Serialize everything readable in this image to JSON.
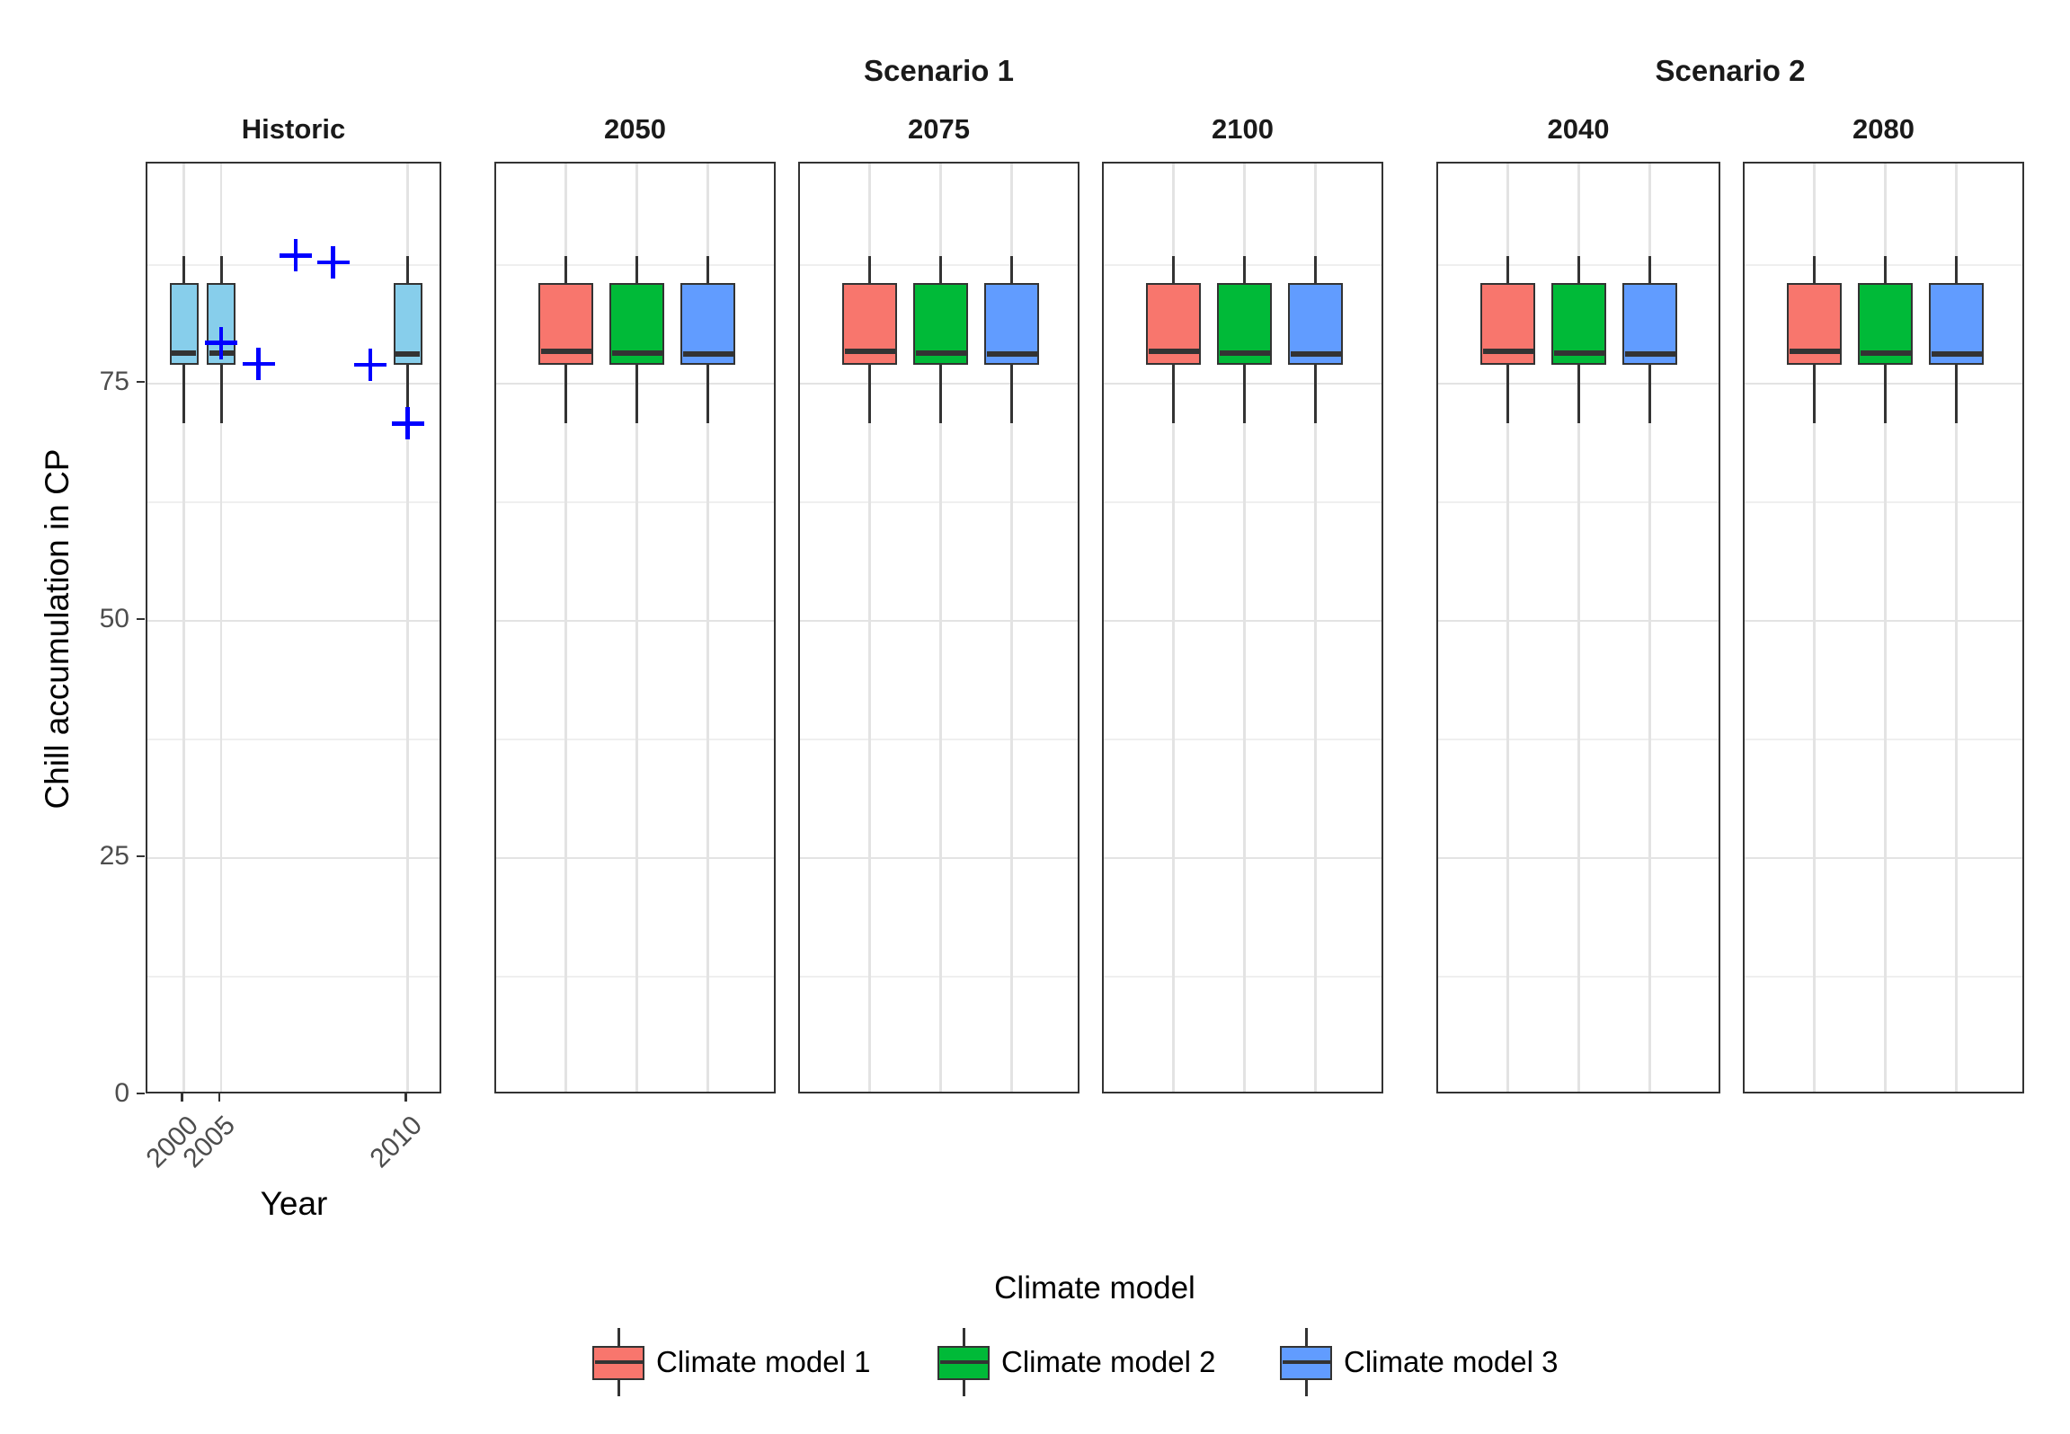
{
  "chart_data": {
    "type": "boxplot",
    "title": "",
    "ylabel": "Chill accumulation in CP",
    "xlabel": "Year",
    "ylim": [
      0,
      98.2
    ],
    "y_ticks": [
      0,
      25,
      50,
      75
    ],
    "y_minor_gridlines": [
      12.5,
      37.5,
      62.5,
      87.5
    ],
    "grid": "on",
    "colors": {
      "historic_fill": "#87CEEB",
      "model1": "#F8766D",
      "model2": "#00BA38",
      "model3": "#619CFF",
      "observed_point": "#0000FF",
      "box_stroke": "#333333",
      "tick_text": "#4d4d4d"
    },
    "legend": {
      "title": "Climate model",
      "position": "bottom",
      "entries": [
        {
          "label": "Climate model 1",
          "color": "#F8766D"
        },
        {
          "label": "Climate model 2",
          "color": "#00BA38"
        },
        {
          "label": "Climate model 3",
          "color": "#619CFF"
        }
      ]
    },
    "facet_groups": [
      {
        "label": "Scenario 1",
        "facet_indexes": [
          1,
          2,
          3
        ]
      },
      {
        "label": "Scenario 2",
        "facet_indexes": [
          4,
          5
        ]
      }
    ],
    "facets": [
      {
        "label": "Historic",
        "x_levels": [
          "2000",
          "2005",
          "2006",
          "2007",
          "2008",
          "2009",
          "2010"
        ],
        "x_ticks": [
          "2000",
          "2005",
          "2010"
        ],
        "boxplots": [
          {
            "x": "2000",
            "fill": "#87CEEB",
            "whisker_low": 70.8,
            "q1": 77.0,
            "median": 78.2,
            "q3": 85.6,
            "whisker_high": 88.4
          },
          {
            "x": "2005",
            "fill": "#87CEEB",
            "whisker_low": 70.8,
            "q1": 77.0,
            "median": 78.2,
            "q3": 85.6,
            "whisker_high": 88.4
          },
          {
            "x": "2010",
            "fill": "#87CEEB",
            "whisker_low": 69.3,
            "q1": 77.0,
            "median": 78.1,
            "q3": 85.6,
            "whisker_high": 88.4
          }
        ],
        "points": [
          {
            "x": "2005",
            "y": 79.3
          },
          {
            "x": "2006",
            "y": 77.1
          },
          {
            "x": "2007",
            "y": 88.5
          },
          {
            "x": "2008",
            "y": 87.8
          },
          {
            "x": "2009",
            "y": 77.0
          },
          {
            "x": "2010",
            "y": 70.8
          }
        ],
        "point_style": {
          "shape": "plus",
          "color": "#0000FF"
        }
      },
      {
        "label": "2050",
        "x_levels": [
          "Climate model 1",
          "Climate model 2",
          "Climate model 3"
        ],
        "x_ticks": [],
        "boxplots": [
          {
            "x": "Climate model 1",
            "fill": "#F8766D",
            "whisker_low": 70.8,
            "q1": 77.0,
            "median": 78.4,
            "q3": 85.6,
            "whisker_high": 88.4
          },
          {
            "x": "Climate model 2",
            "fill": "#00BA38",
            "whisker_low": 70.8,
            "q1": 77.0,
            "median": 78.2,
            "q3": 85.6,
            "whisker_high": 88.4
          },
          {
            "x": "Climate model 3",
            "fill": "#619CFF",
            "whisker_low": 70.8,
            "q1": 77.0,
            "median": 78.1,
            "q3": 85.6,
            "whisker_high": 88.4
          }
        ],
        "points": []
      },
      {
        "label": "2075",
        "x_levels": [
          "Climate model 1",
          "Climate model 2",
          "Climate model 3"
        ],
        "x_ticks": [],
        "boxplots": [
          {
            "x": "Climate model 1",
            "fill": "#F8766D",
            "whisker_low": 70.8,
            "q1": 77.0,
            "median": 78.4,
            "q3": 85.6,
            "whisker_high": 88.4
          },
          {
            "x": "Climate model 2",
            "fill": "#00BA38",
            "whisker_low": 70.8,
            "q1": 77.0,
            "median": 78.2,
            "q3": 85.6,
            "whisker_high": 88.4
          },
          {
            "x": "Climate model 3",
            "fill": "#619CFF",
            "whisker_low": 70.8,
            "q1": 77.0,
            "median": 78.1,
            "q3": 85.6,
            "whisker_high": 88.4
          }
        ],
        "points": []
      },
      {
        "label": "2100",
        "x_levels": [
          "Climate model 1",
          "Climate model 2",
          "Climate model 3"
        ],
        "x_ticks": [],
        "boxplots": [
          {
            "x": "Climate model 1",
            "fill": "#F8766D",
            "whisker_low": 70.8,
            "q1": 77.0,
            "median": 78.4,
            "q3": 85.6,
            "whisker_high": 88.4
          },
          {
            "x": "Climate model 2",
            "fill": "#00BA38",
            "whisker_low": 70.8,
            "q1": 77.0,
            "median": 78.2,
            "q3": 85.6,
            "whisker_high": 88.4
          },
          {
            "x": "Climate model 3",
            "fill": "#619CFF",
            "whisker_low": 70.8,
            "q1": 77.0,
            "median": 78.1,
            "q3": 85.6,
            "whisker_high": 88.4
          }
        ],
        "points": []
      },
      {
        "label": "2040",
        "x_levels": [
          "Climate model 1",
          "Climate model 2",
          "Climate model 3"
        ],
        "x_ticks": [],
        "boxplots": [
          {
            "x": "Climate model 1",
            "fill": "#F8766D",
            "whisker_low": 70.8,
            "q1": 77.0,
            "median": 78.4,
            "q3": 85.6,
            "whisker_high": 88.4
          },
          {
            "x": "Climate model 2",
            "fill": "#00BA38",
            "whisker_low": 70.8,
            "q1": 77.0,
            "median": 78.2,
            "q3": 85.6,
            "whisker_high": 88.4
          },
          {
            "x": "Climate model 3",
            "fill": "#619CFF",
            "whisker_low": 70.8,
            "q1": 77.0,
            "median": 78.1,
            "q3": 85.6,
            "whisker_high": 88.4
          }
        ],
        "points": []
      },
      {
        "label": "2080",
        "x_levels": [
          "Climate model 1",
          "Climate model 2",
          "Climate model 3"
        ],
        "x_ticks": [],
        "boxplots": [
          {
            "x": "Climate model 1",
            "fill": "#F8766D",
            "whisker_low": 70.8,
            "q1": 77.0,
            "median": 78.4,
            "q3": 85.6,
            "whisker_high": 88.4
          },
          {
            "x": "Climate model 2",
            "fill": "#00BA38",
            "whisker_low": 70.8,
            "q1": 77.0,
            "median": 78.2,
            "q3": 85.6,
            "whisker_high": 88.4
          },
          {
            "x": "Climate model 3",
            "fill": "#619CFF",
            "whisker_low": 70.8,
            "q1": 77.0,
            "median": 78.1,
            "q3": 85.6,
            "whisker_high": 88.4
          }
        ],
        "points": []
      }
    ]
  }
}
